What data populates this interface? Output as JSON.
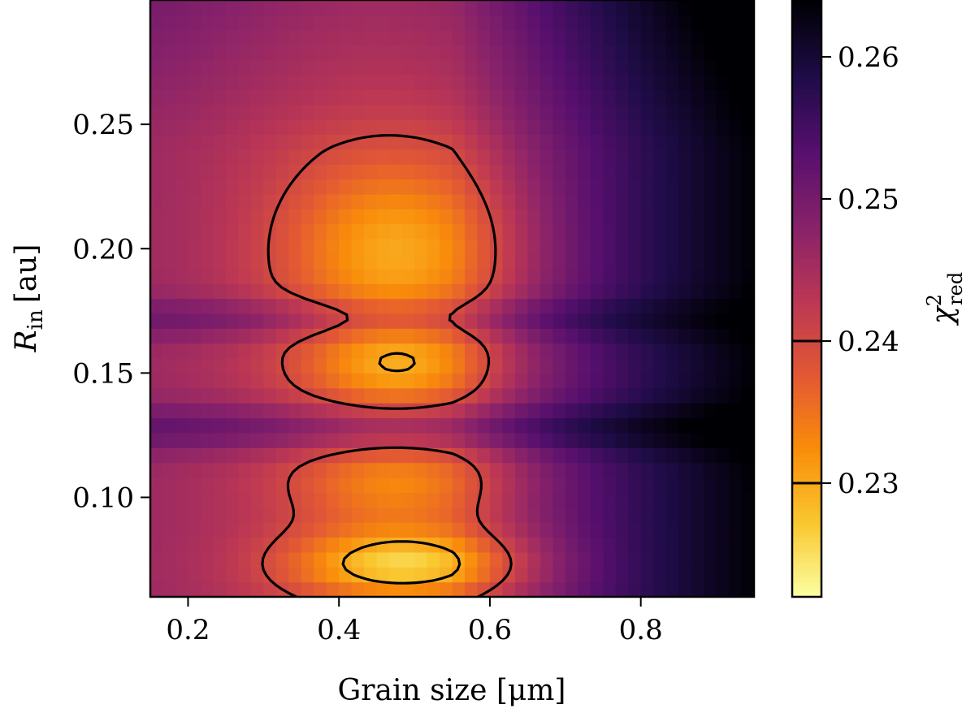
{
  "chart_data": {
    "type": "heatmap",
    "title": "",
    "xlabel": "Grain size [μm]",
    "ylabel": "R_in [au]",
    "ylabel_main": "R",
    "ylabel_sub": "in",
    "ylabel_unit": "[au]",
    "xlim": [
      0.15,
      0.95
    ],
    "ylim": [
      0.06,
      0.3
    ],
    "x_ticks": [
      0.2,
      0.4,
      0.6,
      0.8
    ],
    "x_tick_labels": [
      "0.2",
      "0.4",
      "0.6",
      "0.8"
    ],
    "y_ticks": [
      0.1,
      0.15,
      0.2,
      0.25
    ],
    "y_tick_labels": [
      "0.10",
      "0.15",
      "0.20",
      "0.25"
    ],
    "colormap": "inferno_r",
    "colorbar": {
      "label": "χ²_red",
      "label_main": "χ",
      "label_sup": "2",
      "label_sub": "red",
      "range": [
        0.222,
        0.264
      ],
      "ticks": [
        0.23,
        0.24,
        0.25,
        0.26
      ],
      "tick_labels": [
        "0.23",
        "0.24",
        "0.25",
        "0.26"
      ],
      "contour_levels": [
        0.23,
        0.24
      ]
    },
    "grid": false,
    "min_locations": [
      {
        "x": 0.49,
        "y": 0.199,
        "value": 0.222
      },
      {
        "x": 0.49,
        "y": 0.073,
        "value": 0.223
      },
      {
        "x": 0.48,
        "y": 0.152,
        "value": 0.229
      }
    ]
  }
}
